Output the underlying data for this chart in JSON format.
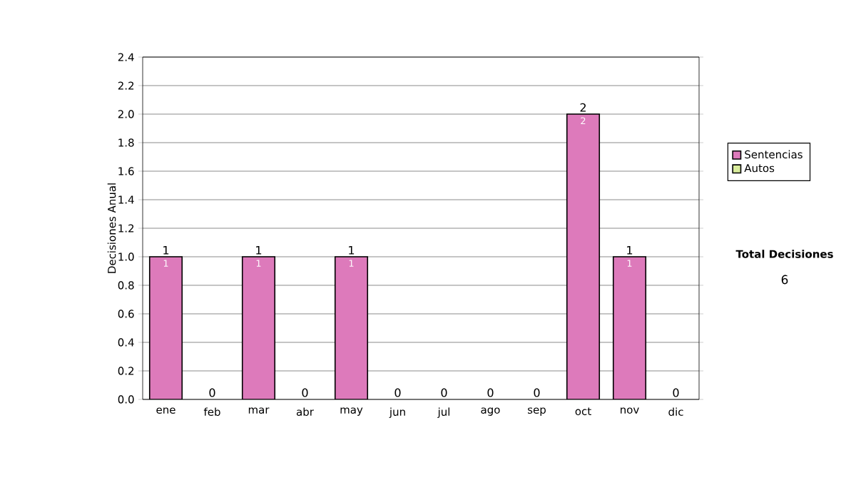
{
  "chart_data": {
    "type": "bar",
    "stacked": true,
    "ylabel": "Decisiones Anual",
    "categories": [
      "ene",
      "feb",
      "mar",
      "abr",
      "may",
      "jun",
      "jul",
      "ago",
      "sep",
      "oct",
      "nov",
      "dic"
    ],
    "series": [
      {
        "name": "Sentencias",
        "color": "#dd7abb",
        "values": [
          1,
          0,
          1,
          0,
          1,
          0,
          0,
          0,
          0,
          2,
          1,
          0
        ],
        "value_labels": [
          "1",
          null,
          "1",
          null,
          "1",
          null,
          null,
          null,
          null,
          "2",
          "1",
          null
        ]
      },
      {
        "name": "Autos",
        "color": "#d9ec9c",
        "values": [
          0,
          0,
          0,
          0,
          0,
          0,
          0,
          0,
          0,
          0,
          0,
          0
        ]
      }
    ],
    "totals": [
      "1",
      "0",
      "1",
      "0",
      "1",
      "0",
      "0",
      "0",
      "0",
      "2",
      "1",
      "0"
    ],
    "ylim": [
      0,
      2.4
    ],
    "yticks": [
      {
        "value": 0,
        "label": "0.0"
      },
      {
        "value": 0.2,
        "label": "0.2"
      },
      {
        "value": 0.4,
        "label": "0.4"
      },
      {
        "value": 0.6,
        "label": "0.6"
      },
      {
        "value": 0.8,
        "label": "0.8"
      },
      {
        "value": 1,
        "label": "1.0"
      },
      {
        "value": 1.2,
        "label": "1.2"
      },
      {
        "value": 1.4,
        "label": "1.4"
      },
      {
        "value": 1.6,
        "label": "1.6"
      },
      {
        "value": 1.8,
        "label": "1.8"
      },
      {
        "value": 2,
        "label": "2.0"
      },
      {
        "value": 2.2,
        "label": "2.2"
      },
      {
        "value": 2.4,
        "label": "2.4"
      }
    ],
    "grid": "y",
    "legend": "right",
    "annotations": [
      "Total Decisiones",
      "6"
    ]
  }
}
